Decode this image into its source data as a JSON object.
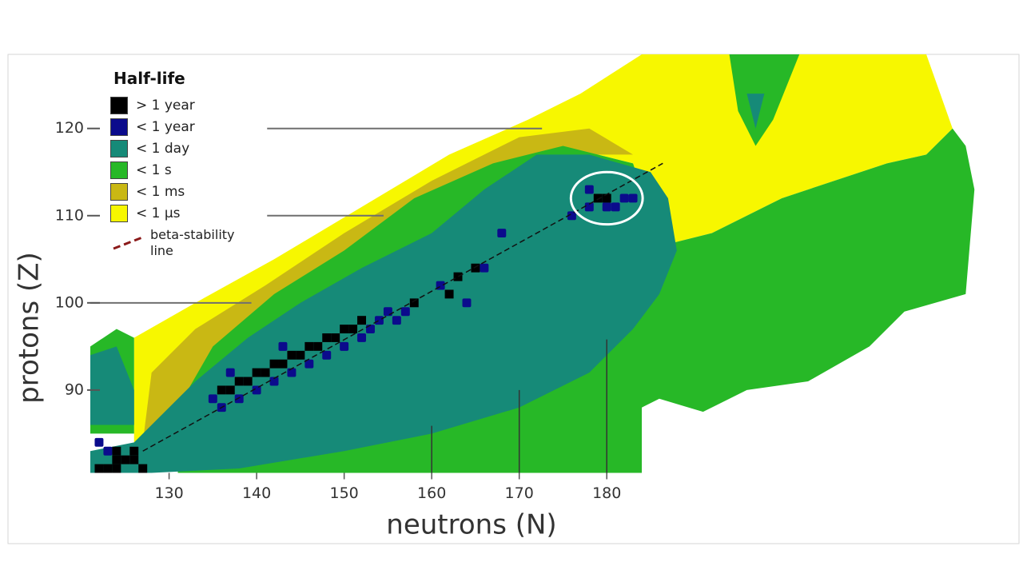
{
  "chart_data": {
    "type": "heatmap",
    "xlabel": "neutrons  (N)",
    "ylabel": "protons  (Z)",
    "xlim": [
      121,
      227
    ],
    "ylim": [
      80.5,
      128.5
    ],
    "xticks": [
      130,
      140,
      150,
      160,
      170,
      180
    ],
    "yticks": [
      90,
      100,
      110,
      120
    ],
    "legend_title": "Half-life",
    "series": [
      {
        "name": "> 1 year",
        "color": "#000000",
        "regions": [],
        "cells": [
          [
            122,
            81
          ],
          [
            123,
            81
          ],
          [
            124,
            81
          ],
          [
            124,
            82
          ],
          [
            125,
            82
          ],
          [
            126,
            82
          ],
          [
            126,
            83
          ],
          [
            124,
            83
          ],
          [
            127,
            81
          ],
          [
            136,
            90
          ],
          [
            137,
            90
          ],
          [
            138,
            91
          ],
          [
            139,
            91
          ],
          [
            140,
            92
          ],
          [
            141,
            92
          ],
          [
            142,
            93
          ],
          [
            143,
            93
          ],
          [
            144,
            94
          ],
          [
            145,
            94
          ],
          [
            146,
            95
          ],
          [
            147,
            95
          ],
          [
            148,
            96
          ],
          [
            149,
            96
          ],
          [
            150,
            97
          ],
          [
            151,
            97
          ],
          [
            152,
            98
          ],
          [
            158,
            100
          ],
          [
            162,
            101
          ],
          [
            163,
            103
          ],
          [
            165,
            104
          ],
          [
            179,
            112
          ],
          [
            180,
            112
          ]
        ]
      },
      {
        "name": "< 1 year",
        "color": "#0b0b8c",
        "regions": [],
        "cells": [
          [
            122,
            84
          ],
          [
            123,
            83
          ],
          [
            136,
            88
          ],
          [
            135,
            89
          ],
          [
            137,
            92
          ],
          [
            138,
            89
          ],
          [
            140,
            90
          ],
          [
            142,
            91
          ],
          [
            144,
            92
          ],
          [
            143,
            95
          ],
          [
            146,
            93
          ],
          [
            148,
            94
          ],
          [
            150,
            95
          ],
          [
            152,
            96
          ],
          [
            153,
            97
          ],
          [
            154,
            98
          ],
          [
            155,
            99
          ],
          [
            156,
            98
          ],
          [
            157,
            99
          ],
          [
            161,
            102
          ],
          [
            164,
            100
          ],
          [
            166,
            104
          ],
          [
            168,
            108
          ],
          [
            176,
            110
          ],
          [
            178,
            111
          ],
          [
            178,
            113
          ],
          [
            180,
            111
          ],
          [
            181,
            111
          ],
          [
            182,
            112
          ],
          [
            183,
            112
          ]
        ]
      },
      {
        "name": "< 1 day",
        "color": "#168a78",
        "cells": [],
        "regions": [
          [
            [
              128,
              80.5
            ],
            [
              138,
              81
            ],
            [
              150,
              83
            ],
            [
              160,
              85
            ],
            [
              170,
              88
            ],
            [
              178,
              92
            ],
            [
              183,
              97
            ],
            [
              186,
              101
            ],
            [
              188,
              106
            ],
            [
              187,
              112
            ],
            [
              185,
              115
            ],
            [
              178,
              117
            ],
            [
              172,
              117
            ],
            [
              166,
              113
            ],
            [
              160,
              108
            ],
            [
              152,
              104
            ],
            [
              145,
              100
            ],
            [
              139,
              96
            ],
            [
              133,
              91
            ],
            [
              129,
              87
            ],
            [
              126,
              84
            ],
            [
              121,
              83
            ],
            [
              121,
              80.5
            ]
          ],
          [
            [
              121,
              86
            ],
            [
              121,
              94
            ],
            [
              124,
              95
            ],
            [
              126,
              90
            ],
            [
              126,
              86
            ]
          ],
          [
            [
              196,
              124
            ],
            [
              198,
              124
            ],
            [
              197,
              120
            ]
          ]
        ]
      },
      {
        "name": "< 1 s",
        "color": "#27b827",
        "cells": [],
        "regions": [
          [
            [
              131,
              80.5
            ],
            [
              184,
              80.5
            ],
            [
              184,
              88
            ],
            [
              186,
              89
            ],
            [
              191,
              87.5
            ],
            [
              196,
              90
            ],
            [
              203,
              91
            ],
            [
              210,
              95
            ],
            [
              214,
              99
            ],
            [
              221,
              101
            ],
            [
              222,
              113
            ],
            [
              221,
              118
            ],
            [
              219.5,
              120
            ],
            [
              216.5,
              117
            ],
            [
              212,
              116
            ],
            [
              200,
              112
            ],
            [
              192,
              108
            ],
            [
              186,
              106.5
            ],
            [
              185,
              110
            ],
            [
              183,
              116
            ],
            [
              175,
              118
            ],
            [
              167,
              116
            ],
            [
              158,
              112
            ],
            [
              150,
              106
            ],
            [
              142,
              101
            ],
            [
              135,
              95
            ],
            [
              131,
              88
            ]
          ],
          [
            [
              121,
              85
            ],
            [
              121,
              95
            ],
            [
              124,
              97
            ],
            [
              126,
              96
            ],
            [
              126,
              85
            ]
          ],
          [
            [
              194,
              128.5
            ],
            [
              202,
              128.5
            ],
            [
              199,
              121
            ],
            [
              197,
              118
            ],
            [
              195,
              122
            ]
          ]
        ]
      },
      {
        "name": "< 1 ms",
        "color": "#c9b814",
        "cells": [],
        "regions": [
          [
            [
              127,
              84
            ],
            [
              128,
              92
            ],
            [
              133,
              97
            ],
            [
              141,
              102
            ],
            [
              150,
              108
            ],
            [
              160,
              114
            ],
            [
              170,
              119
            ],
            [
              178,
              120
            ],
            [
              183,
              117
            ],
            [
              178,
              117
            ],
            [
              170,
              116
            ],
            [
              160,
              111
            ],
            [
              152,
              105.5
            ],
            [
              144,
              100.5
            ],
            [
              137,
              95
            ],
            [
              131,
              88
            ],
            [
              130,
              84
            ]
          ]
        ]
      },
      {
        "name": "< 1 μs",
        "color": "#f7f700",
        "cells": [],
        "regions": [
          [
            [
              126,
              83
            ],
            [
              126,
              96
            ],
            [
              133,
              100
            ],
            [
              142,
              105
            ],
            [
              152,
              111
            ],
            [
              162,
              117
            ],
            [
              171,
              121
            ],
            [
              177,
              124
            ],
            [
              184,
              128.5
            ],
            [
              216.5,
              128.5
            ],
            [
              219.5,
              120
            ],
            [
              216.5,
              117
            ],
            [
              212,
              116
            ],
            [
              200,
              112
            ],
            [
              192,
              108
            ],
            [
              186,
              106.5
            ],
            [
              185,
              110
            ],
            [
              183,
              116
            ],
            [
              175,
              118
            ],
            [
              167,
              116
            ],
            [
              158,
              112
            ],
            [
              150,
              106
            ],
            [
              142,
              101
            ],
            [
              135,
              95
            ],
            [
              131,
              88
            ],
            [
              131,
              83
            ]
          ]
        ]
      }
    ],
    "stability_line": {
      "name": "beta-stability line",
      "color": "#8b1a1a",
      "x": [
        127,
        186.4
      ],
      "y": [
        83,
        116
      ]
    },
    "yguides": [
      {
        "value": 120,
        "from": 141.2,
        "to": 172.6
      },
      {
        "value": 110,
        "from": 141.2,
        "to": 154.5
      },
      {
        "value": 100,
        "from": 121,
        "to": 139.4
      }
    ],
    "xguides": [
      {
        "value": 160,
        "from": 80.5,
        "to": 85.9
      },
      {
        "value": 170,
        "from": 80.5,
        "to": 90
      },
      {
        "value": 180,
        "from": 80.5,
        "to": 95.8
      }
    ],
    "highlight": {
      "x": 180,
      "y": 112,
      "rx": 4.1,
      "ry": 3
    }
  }
}
